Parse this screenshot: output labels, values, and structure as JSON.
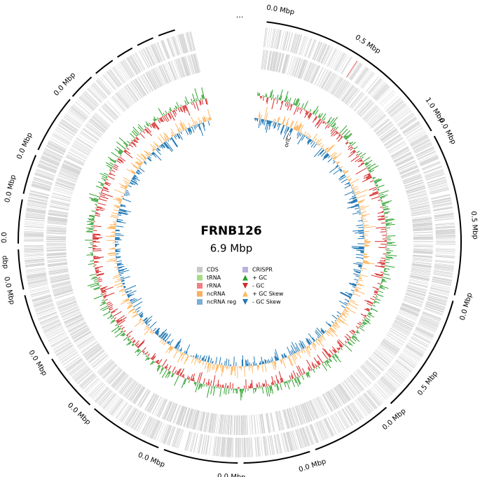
{
  "header": {
    "title": "FRNB126",
    "size": "6.9 Mbp",
    "ellipsis": "..."
  },
  "scale_labels": [
    "0.0 Mbp",
    "0.5 Mbp",
    "1.0 Mbp",
    "0.0 Mbp",
    "0.5 Mbp",
    "0.0 Mbp",
    "0.5 Mbp",
    "0.0 Mbp",
    "0.0 Mbp",
    "0.0 Mbp",
    "0.0 Mbp",
    "0.0 Mbp",
    "0.0 Mbp",
    "0.0 Mbp",
    "0.0",
    "dbp",
    "0.0 Mbp",
    "0.0 Mbp",
    "0.0 Mbp"
  ],
  "annotation": "oriC",
  "legend": [
    {
      "label": "CDS",
      "color": "#c8c8c8",
      "shape": "square"
    },
    {
      "label": "tRNA",
      "color": "#a6dd84",
      "shape": "square"
    },
    {
      "label": "rRNA",
      "color": "#f08080",
      "shape": "square"
    },
    {
      "label": "ncRNA",
      "color": "#f9b060",
      "shape": "square"
    },
    {
      "label": "ncRNA reg",
      "color": "#7aaed6",
      "shape": "square"
    },
    {
      "label": "CRISPR",
      "color": "#b7b3dd",
      "shape": "square"
    },
    {
      "label": "+ GC",
      "color": "#2ca02c",
      "shape": "up"
    },
    {
      "label": "- GC",
      "color": "#d62728",
      "shape": "down"
    },
    {
      "label": "+ GC Skew",
      "color": "#fdb863",
      "shape": "up"
    },
    {
      "label": "- GC Skew",
      "color": "#1f77b4",
      "shape": "down"
    }
  ]
}
